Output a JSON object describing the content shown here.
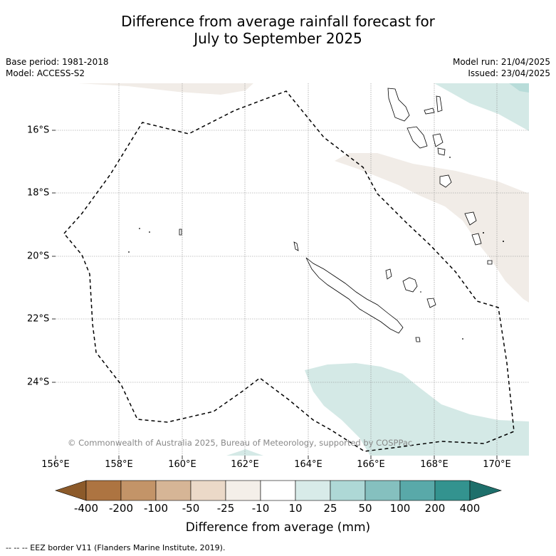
{
  "title_line1": "Difference from average rainfall forecast for",
  "title_line2": "July to September 2025",
  "base_period": "Base period: 1981-2018",
  "model": "Model: ACCESS-S2",
  "model_run": "Model run: 21/04/2025",
  "issued": "Issued: 23/04/2025",
  "copyright": "© Commonwealth of Australia 2025, Bureau of Meteorology, supported by COSPPac",
  "longitude_labels": [
    "156°E",
    "158°E",
    "160°E",
    "162°E",
    "164°E",
    "166°E",
    "168°E",
    "170°E"
  ],
  "latitude_labels": [
    "16°S",
    "18°S",
    "20°S",
    "22°S",
    "24°S"
  ],
  "colorbar": {
    "ticks": [
      "-400",
      "-200",
      "-100",
      "-50",
      "-25",
      "-10",
      "10",
      "25",
      "50",
      "100",
      "200",
      "400"
    ],
    "colors": {
      "below_min": "#8c5a2a",
      "bins": [
        "#ad7441",
        "#c39468",
        "#d6b596",
        "#ebd9c8",
        "#f4efe9",
        "#ffffff",
        "#d8ebe9",
        "#aed8d6",
        "#85c0bf",
        "#59a9a9",
        "#33938f"
      ],
      "above_max": "#1e6f6b"
    },
    "label": "Difference from average (mm)"
  },
  "footer_text": "--  --  -- EEZ border V11 (Flanders Marine Institute, 2019).",
  "palette": {
    "light_tan_region": "#f1ece7",
    "light_teal_region": "#d4e9e6",
    "mid_teal_region": "#b8dcd9"
  }
}
